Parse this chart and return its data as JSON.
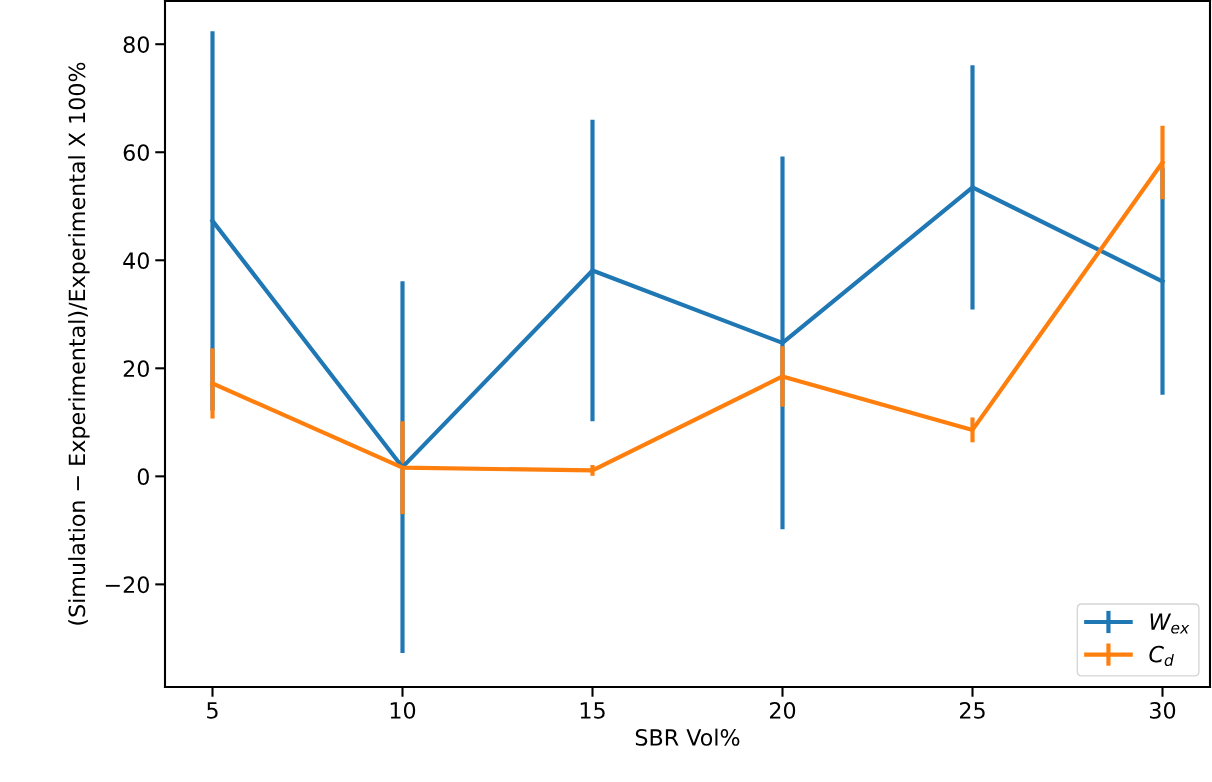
{
  "chart_data": {
    "type": "line",
    "xlabel": "SBR Vol%",
    "ylabel": "(Simulation − Experimental)/Experimental X 100%",
    "x": [
      5,
      10,
      15,
      20,
      25,
      30
    ],
    "series": [
      {
        "name": "W$_{ex}$",
        "color": "#1f77b4",
        "values": [
          47.3,
          1.7,
          38.1,
          24.7,
          53.5,
          36.1
        ],
        "errors": [
          35.1,
          34.4,
          27.9,
          34.5,
          22.6,
          21.0
        ]
      },
      {
        "name": "C$_{d}$",
        "color": "#ff7f0e",
        "values": [
          17.2,
          1.6,
          1.1,
          18.5,
          8.6,
          58.1
        ],
        "errors": [
          6.5,
          8.6,
          1.0,
          5.6,
          2.3,
          6.8
        ]
      }
    ],
    "xlim": [
      3.75,
      31.25
    ],
    "ylim": [
      -39,
      88
    ],
    "xticks": [
      5,
      10,
      15,
      20,
      25,
      30
    ],
    "yticks": [
      {
        "value": -20,
        "label": "−20"
      },
      0,
      20,
      40,
      60,
      80
    ],
    "legend": "lower right",
    "grid": false
  }
}
